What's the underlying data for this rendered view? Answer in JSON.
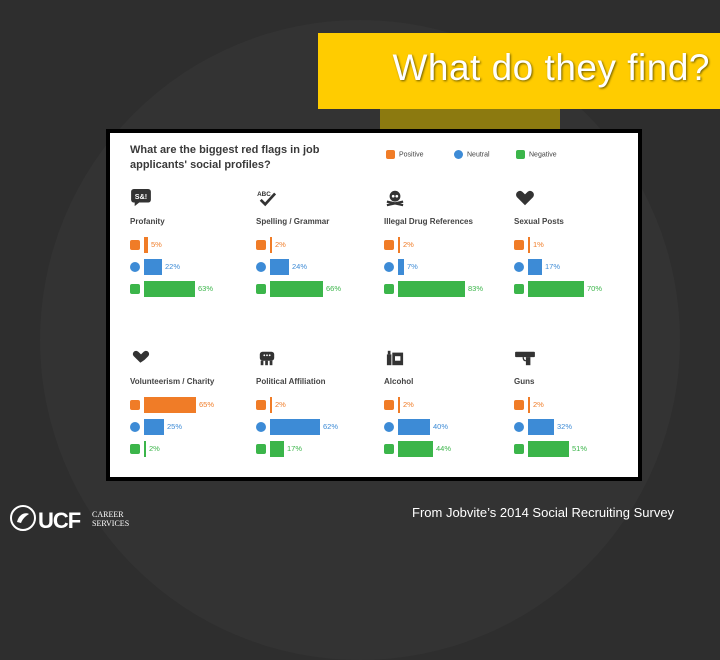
{
  "slide_title": "What do they find?",
  "survey_title": "What are the biggest red flags in job applicants' social profiles?",
  "legend": [
    {
      "label": "Positive",
      "color": "#f07c27",
      "icon": "thumbs-up-icon"
    },
    {
      "label": "Neutral",
      "color": "#3d8bd6",
      "icon": "neutral-icon"
    },
    {
      "label": "Negative",
      "color": "#3bb54a",
      "icon": "thumbs-down-icon"
    }
  ],
  "categories": [
    {
      "label": "Profanity",
      "icon": "speech-bubble-icon",
      "icon_text": "S&!",
      "positive": "5%",
      "neutral": "22%",
      "negative": "63%",
      "pos": 5,
      "neu": 22,
      "neg": 63
    },
    {
      "label": "Spelling / Grammar",
      "icon": "abc-check-icon",
      "icon_text": "ABC",
      "positive": "2%",
      "neutral": "24%",
      "negative": "66%",
      "pos": 2,
      "neu": 24,
      "neg": 66
    },
    {
      "label": "Illegal Drug References",
      "icon": "skull-crossbones-icon",
      "icon_text": "",
      "positive": "2%",
      "neutral": "7%",
      "negative": "83%",
      "pos": 2,
      "neu": 7,
      "neg": 83
    },
    {
      "label": "Sexual Posts",
      "icon": "heart-icon",
      "icon_text": "",
      "positive": "1%",
      "neutral": "17%",
      "negative": "70%",
      "pos": 1,
      "neu": 17,
      "neg": 70
    },
    {
      "label": "Volunteerism / Charity",
      "icon": "heart-hand-icon",
      "icon_text": "",
      "positive": "65%",
      "neutral": "25%",
      "negative": "2%",
      "pos": 65,
      "neu": 25,
      "neg": 2
    },
    {
      "label": "Political Affiliation",
      "icon": "elephant-icon",
      "icon_text": "",
      "positive": "2%",
      "neutral": "62%",
      "negative": "17%",
      "pos": 2,
      "neu": 62,
      "neg": 17
    },
    {
      "label": "Alcohol",
      "icon": "bottles-icon",
      "icon_text": "",
      "positive": "2%",
      "neutral": "40%",
      "negative": "44%",
      "pos": 2,
      "neu": 40,
      "neg": 44
    },
    {
      "label": "Guns",
      "icon": "gun-icon",
      "icon_text": "",
      "positive": "2%",
      "neutral": "32%",
      "negative": "51%",
      "pos": 2,
      "neu": 32,
      "neg": 51
    }
  ],
  "footer": {
    "logo_text": "UCF",
    "logo_sub_1": "CAREER",
    "logo_sub_2": "SERVICES",
    "source": "From Jobvite’s 2014 Social Recruiting Survey"
  },
  "colors": {
    "title_bg": "#ffcc00",
    "background": "#2e2e2e"
  }
}
